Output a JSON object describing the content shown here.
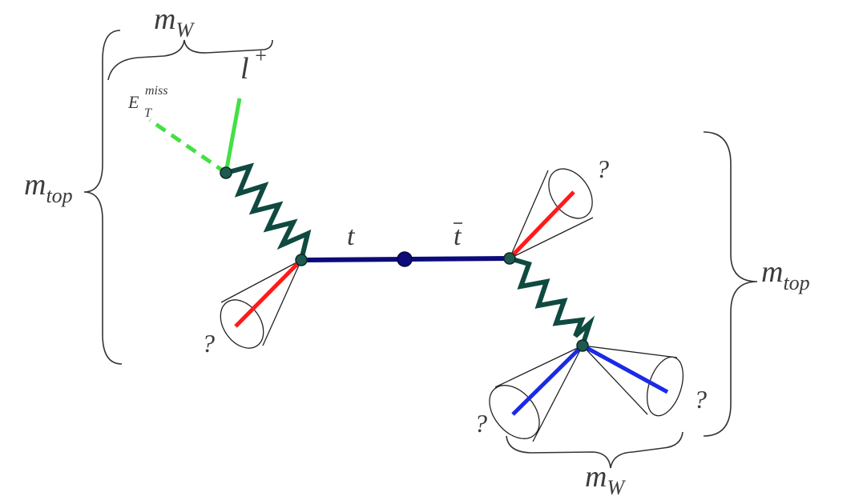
{
  "labels": {
    "mw_top": {
      "main": "m",
      "sub": "W"
    },
    "mtop_left": {
      "main": "m",
      "sub": "top"
    },
    "mtop_right": {
      "main": "m",
      "sub": "top"
    },
    "mw_bottom": {
      "main": "m",
      "sub": "W"
    },
    "lepton": {
      "main": "l",
      "sup": "+"
    },
    "met": {
      "main": "E",
      "sub": "T",
      "sup": "miss"
    },
    "top": "t",
    "antitop": "t",
    "unknown_jet": "?"
  },
  "colors": {
    "top_line": "#0b0b7a",
    "w_boson": "#0f4a40",
    "lepton": "#44e044",
    "neutrino": "#44e044",
    "b_jet": "#ff1a1a",
    "light_jet": "#1a2ae6",
    "vertex": "#1f5a50",
    "center_vertex": "#0b0b7a"
  }
}
